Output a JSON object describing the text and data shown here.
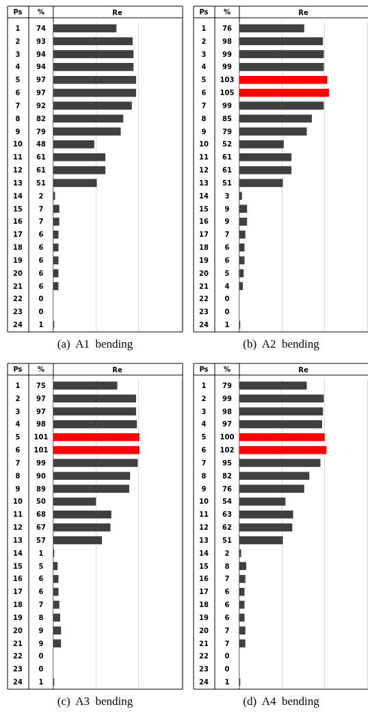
{
  "chart_data": [
    {
      "type": "bar",
      "orientation": "horizontal",
      "title": "(a)  A1  bending",
      "ylabel": "Ps",
      "xlabel": "Re",
      "annotations": [
        "%"
      ],
      "categories": [
        "1",
        "2",
        "3",
        "4",
        "5",
        "6",
        "7",
        "8",
        "9",
        "10",
        "11",
        "12",
        "13",
        "14",
        "15",
        "16",
        "17",
        "18",
        "19",
        "20",
        "21",
        "22",
        "23",
        "24"
      ],
      "values": [
        74,
        93,
        94,
        94,
        97,
        97,
        92,
        82,
        79,
        48,
        61,
        61,
        51,
        2,
        7,
        7,
        6,
        6,
        6,
        6,
        6,
        0,
        0,
        1
      ],
      "colors": [
        "#404040",
        "#404040",
        "#404040",
        "#404040",
        "#404040",
        "#404040",
        "#404040",
        "#404040",
        "#404040",
        "#404040",
        "#404040",
        "#404040",
        "#404040",
        "#404040",
        "#404040",
        "#404040",
        "#404040",
        "#404040",
        "#404040",
        "#404040",
        "#404040",
        "#404040",
        "#404040",
        "#404040"
      ],
      "xlim": [
        0,
        150
      ],
      "xticks": [
        {
          "value": 0,
          "label": null
        },
        {
          "value": 50,
          "label": null
        },
        {
          "value": 100,
          "label": null
        },
        {
          "value": 150,
          "label": null
        }
      ],
      "grid": "x",
      "tick_labels": "y",
      "data_labels": true
    },
    {
      "type": "bar",
      "orientation": "horizontal",
      "title": "(b)  A2  bending",
      "ylabel": "Ps",
      "xlabel": "Re",
      "annotations": [
        "%"
      ],
      "categories": [
        "1",
        "2",
        "3",
        "4",
        "5",
        "6",
        "7",
        "8",
        "9",
        "10",
        "11",
        "12",
        "13",
        "14",
        "15",
        "16",
        "17",
        "18",
        "19",
        "20",
        "21",
        "22",
        "23",
        "24"
      ],
      "values": [
        76,
        98,
        99,
        99,
        103,
        105,
        99,
        85,
        79,
        52,
        61,
        61,
        51,
        3,
        9,
        9,
        7,
        6,
        6,
        5,
        4,
        0,
        0,
        1
      ],
      "colors": [
        "#404040",
        "#404040",
        "#404040",
        "#404040",
        "#ff0000",
        "#ff0000",
        "#404040",
        "#404040",
        "#404040",
        "#404040",
        "#404040",
        "#404040",
        "#404040",
        "#404040",
        "#404040",
        "#404040",
        "#404040",
        "#404040",
        "#404040",
        "#404040",
        "#404040",
        "#404040",
        "#404040",
        "#404040"
      ],
      "xlim": [
        0,
        150
      ],
      "xticks": [
        {
          "value": 0,
          "label": null
        },
        {
          "value": 50,
          "label": null
        },
        {
          "value": 100,
          "label": null
        },
        {
          "value": 150,
          "label": null
        }
      ],
      "grid": "x",
      "tick_labels": "y",
      "data_labels": true
    },
    {
      "type": "bar",
      "orientation": "horizontal",
      "title": "(c)  A3  bending",
      "ylabel": "Ps",
      "xlabel": "Re",
      "annotations": [
        "%"
      ],
      "categories": [
        "1",
        "2",
        "3",
        "4",
        "5",
        "6",
        "7",
        "8",
        "9",
        "10",
        "11",
        "12",
        "13",
        "14",
        "15",
        "16",
        "17",
        "18",
        "19",
        "20",
        "21",
        "22",
        "23",
        "24"
      ],
      "values": [
        75,
        97,
        97,
        98,
        101,
        101,
        99,
        90,
        89,
        50,
        68,
        67,
        57,
        1,
        5,
        6,
        6,
        7,
        8,
        9,
        9,
        0,
        0,
        1
      ],
      "colors": [
        "#404040",
        "#404040",
        "#404040",
        "#404040",
        "#ff0000",
        "#ff0000",
        "#404040",
        "#404040",
        "#404040",
        "#404040",
        "#404040",
        "#404040",
        "#404040",
        "#404040",
        "#404040",
        "#404040",
        "#404040",
        "#404040",
        "#404040",
        "#404040",
        "#404040",
        "#404040",
        "#404040",
        "#404040"
      ],
      "xlim": [
        0,
        150
      ],
      "xticks": [
        {
          "value": 0,
          "label": null
        },
        {
          "value": 50,
          "label": null
        },
        {
          "value": 100,
          "label": null
        },
        {
          "value": 150,
          "label": null
        }
      ],
      "grid": "x",
      "tick_labels": "y",
      "data_labels": true
    },
    {
      "type": "bar",
      "orientation": "horizontal",
      "title": "(d)  A4  bending",
      "ylabel": "Ps",
      "xlabel": "Re",
      "annotations": [
        "%"
      ],
      "categories": [
        "1",
        "2",
        "3",
        "4",
        "5",
        "6",
        "7",
        "8",
        "9",
        "10",
        "11",
        "12",
        "13",
        "14",
        "15",
        "16",
        "17",
        "18",
        "19",
        "20",
        "21",
        "22",
        "23",
        "24"
      ],
      "values": [
        79,
        99,
        98,
        97,
        100,
        102,
        95,
        82,
        76,
        54,
        63,
        62,
        51,
        2,
        8,
        7,
        6,
        6,
        6,
        7,
        7,
        0,
        0,
        1
      ],
      "colors": [
        "#404040",
        "#404040",
        "#404040",
        "#404040",
        "#ff0000",
        "#ff0000",
        "#404040",
        "#404040",
        "#404040",
        "#404040",
        "#404040",
        "#404040",
        "#404040",
        "#404040",
        "#404040",
        "#404040",
        "#404040",
        "#404040",
        "#404040",
        "#404040",
        "#404040",
        "#404040",
        "#404040",
        "#404040"
      ],
      "xlim": [
        0,
        150
      ],
      "xticks": [
        {
          "value": 0,
          "label": null
        },
        {
          "value": 50,
          "label": null
        },
        {
          "value": 100,
          "label": null
        },
        {
          "value": 150,
          "label": null
        }
      ],
      "grid": "x",
      "tick_labels": "y",
      "data_labels": true
    }
  ]
}
